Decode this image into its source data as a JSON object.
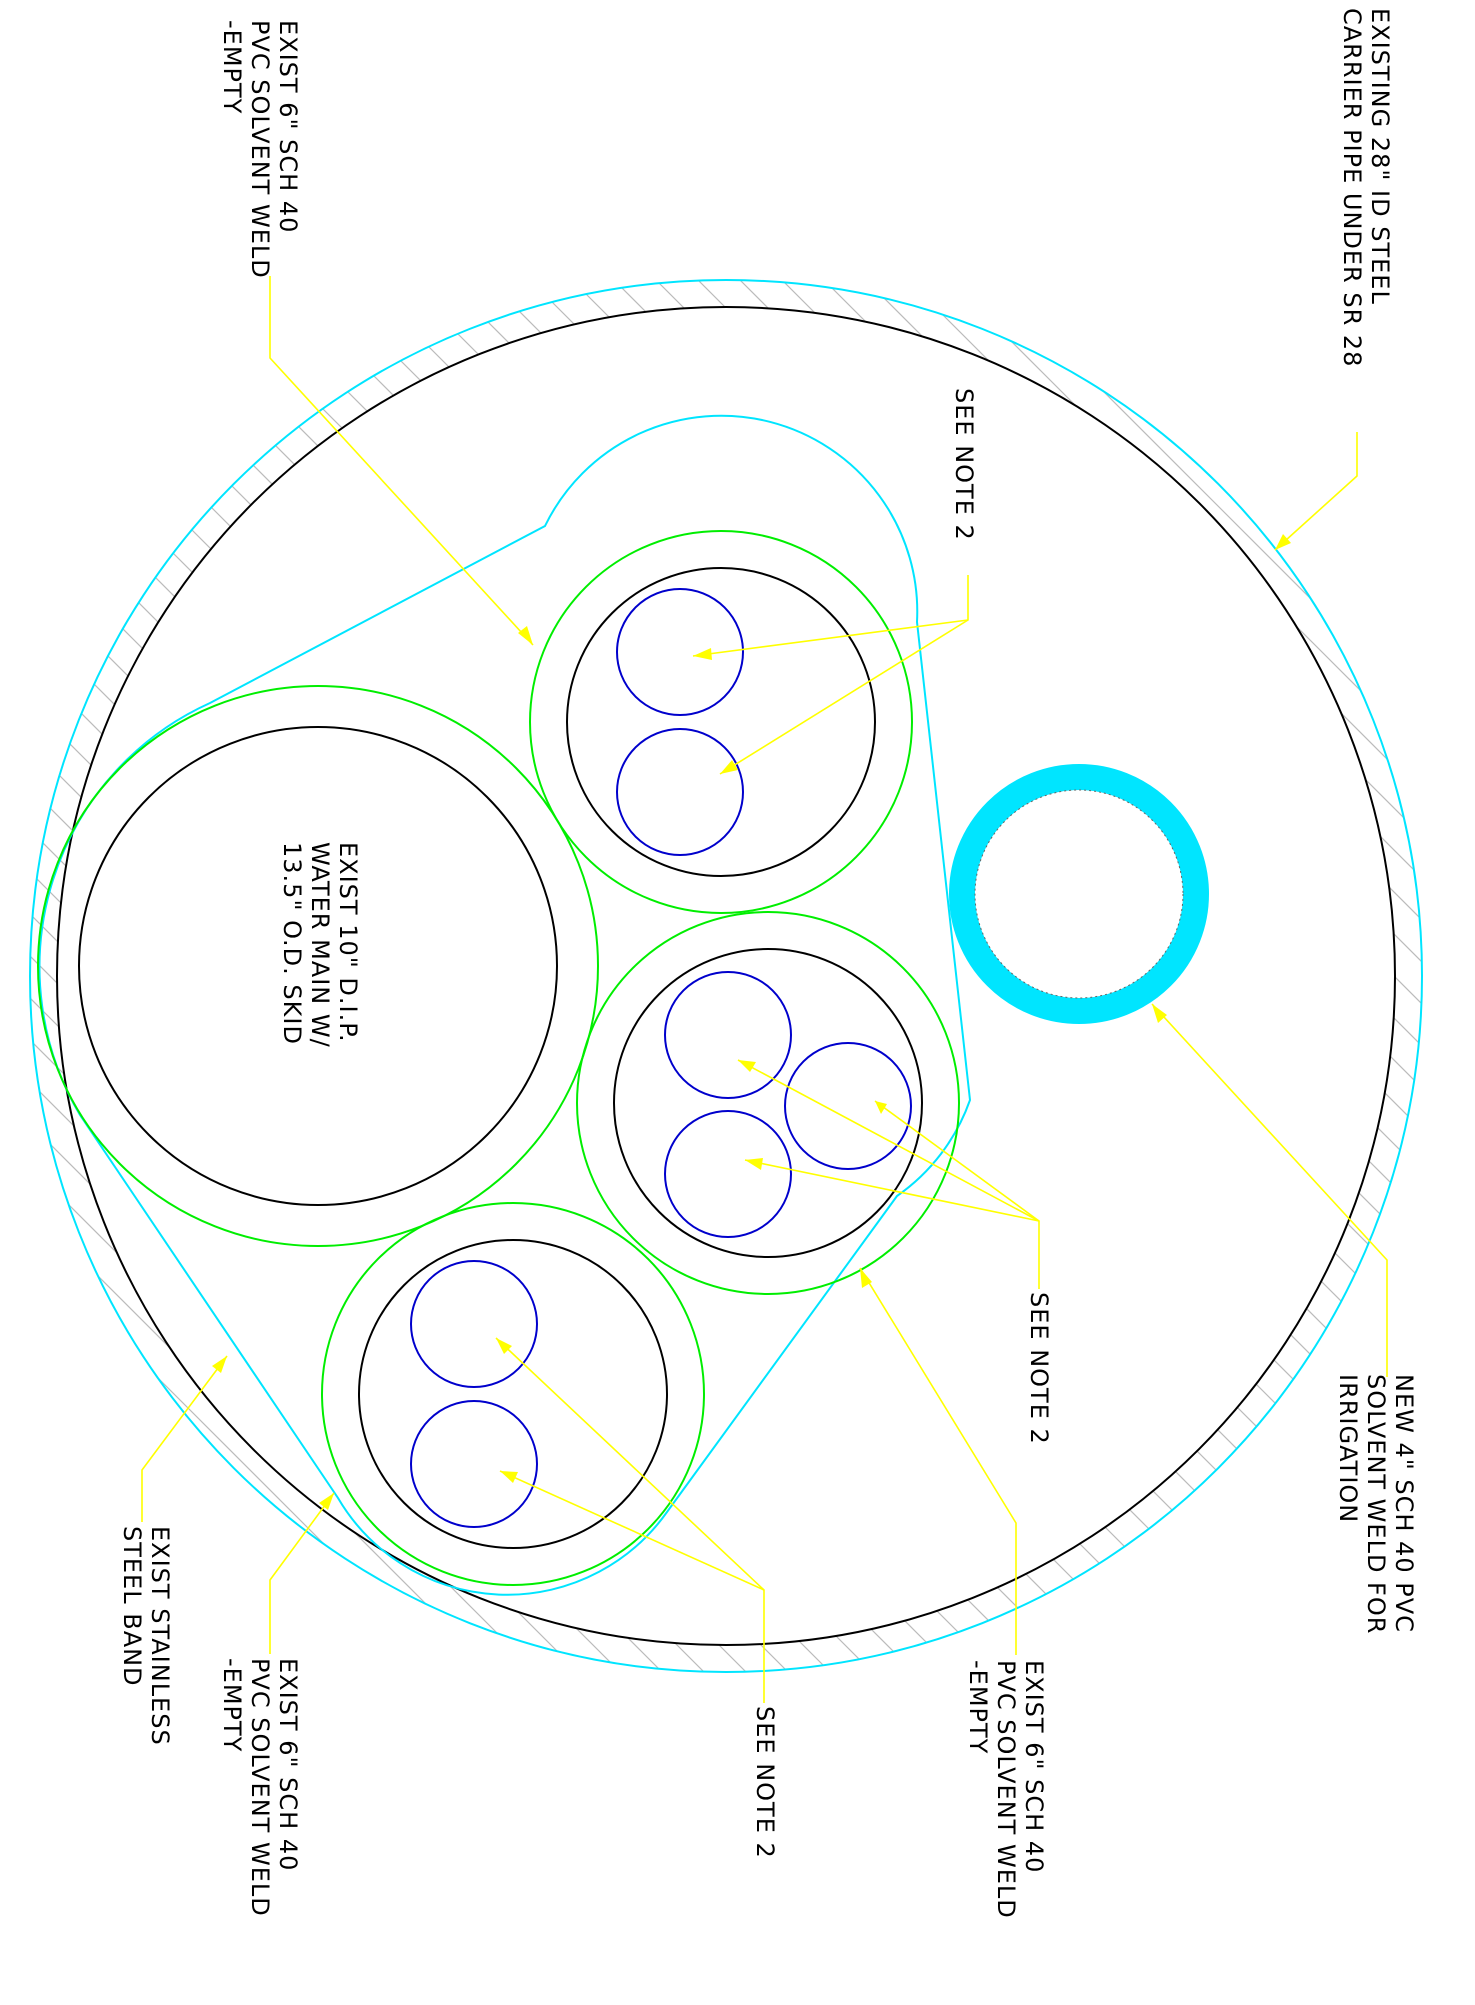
{
  "colors": {
    "background": "#ffffff",
    "line": "#000000",
    "casing": "#00e5ff",
    "pvc_sleeve": "#00ee00",
    "conduit": "#0000cc",
    "leader": "#ffff00",
    "hatch": "#bbbbbb",
    "new_pipe_fill": "#00e5ff"
  },
  "labels": {
    "carrier_pipe": [
      "EXISTING 28\" ID STEEL",
      "CARRIER PIPE UNDER SR 28"
    ],
    "pvc_top": [
      "EXIST 6\" SCH 40",
      "PVC SOLVENT WELD",
      "-EMPTY"
    ],
    "see_note_top": [
      "SEE NOTE 2"
    ],
    "water_main": [
      "EXIST 10\" D.I.P.",
      "WATER MAIN W/",
      "13.5\" O.D. SKID"
    ],
    "see_note_mid": [
      "SEE NOTE 2"
    ],
    "new_pvc": [
      "NEW 4\" SCH 40 PVC",
      "SOLVENT WELD FOR",
      "IRRIGATION"
    ],
    "band": [
      "EXIST STAINLESS",
      "STEEL BAND"
    ],
    "pvc_bottom": [
      "EXIST 6\" SCH 40",
      "PVC SOLVENT WELD",
      "-EMPTY"
    ],
    "see_note_bottom": [
      "SEE NOTE 2"
    ],
    "pvc_mid": [
      "EXIST 6\" SCH 40",
      "PVC SOLVENT WELD",
      "-EMPTY"
    ]
  }
}
